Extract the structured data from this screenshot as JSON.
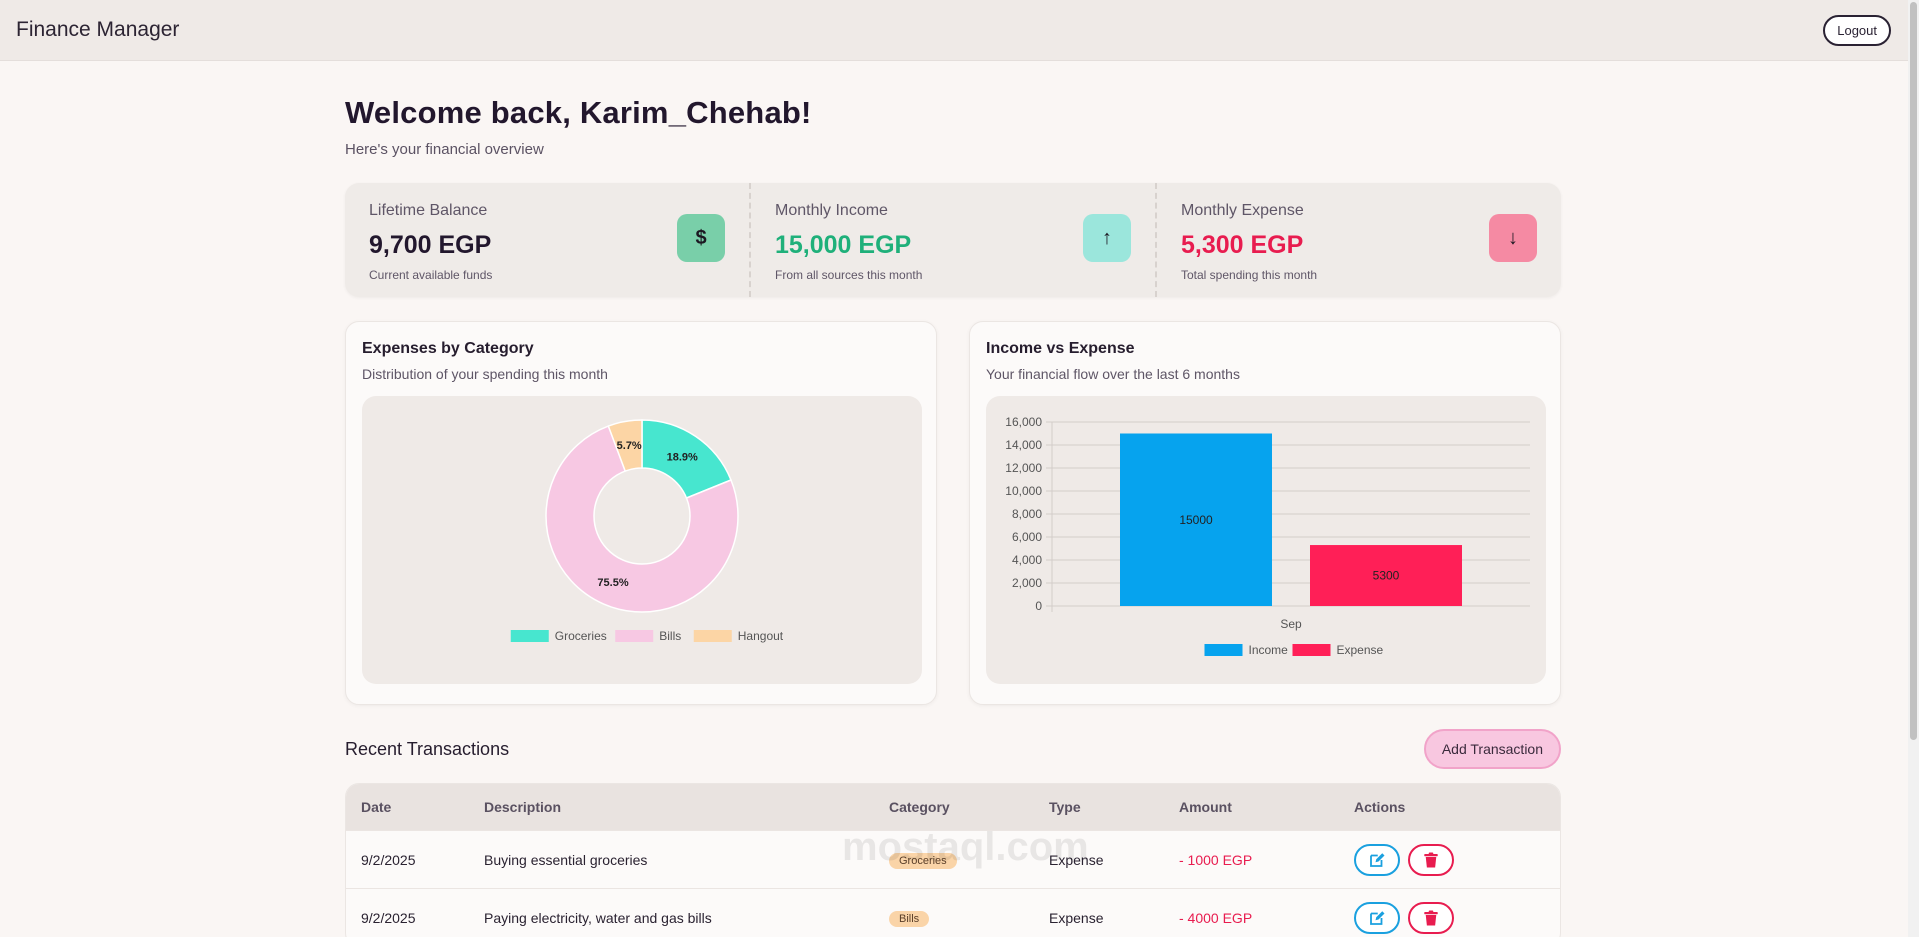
{
  "navbar": {
    "brand": "Finance Manager",
    "logout_label": "Logout"
  },
  "welcome": {
    "title": "Welcome back, Karim_Chehab!",
    "subtitle": "Here's your financial overview"
  },
  "stats": [
    {
      "label": "Lifetime Balance",
      "value": "9,700 EGP",
      "note": "Current available funds",
      "icon": "dollar-icon",
      "icon_glyph": "$",
      "value_color": "#22172d",
      "icon_bg": "#79cfa9"
    },
    {
      "label": "Monthly Income",
      "value": "15,000 EGP",
      "note": "From all sources this month",
      "icon": "arrow-up-icon",
      "icon_glyph": "↑",
      "value_color": "#1fb07a",
      "icon_bg": "#9be6dc"
    },
    {
      "label": "Monthly Expense",
      "value": "5,300 EGP",
      "note": "Total spending this month",
      "icon": "arrow-down-icon",
      "icon_glyph": "↓",
      "value_color": "#e81c4f",
      "icon_bg": "#f58aa3"
    }
  ],
  "expenses_card": {
    "title": "Expenses by Category",
    "subtitle": "Distribution of your spending this month"
  },
  "income_card": {
    "title": "Income vs Expense",
    "subtitle": "Your financial flow over the last 6 months"
  },
  "chart_data": [
    {
      "type": "pie",
      "categories": [
        "Groceries",
        "Bills",
        "Hangout"
      ],
      "values": [
        18.9,
        75.5,
        5.7
      ],
      "labels": [
        "18.9%",
        "75.5%",
        "5.7%"
      ],
      "colors": [
        "#47e6cf",
        "#f7c8e3",
        "#fcd5a5"
      ],
      "legend": "bottom"
    },
    {
      "type": "bar",
      "categories": [
        "Sep"
      ],
      "series": [
        {
          "name": "Income",
          "values": [
            15000
          ],
          "color": "#06a3ee"
        },
        {
          "name": "Expense",
          "values": [
            5300
          ],
          "color": "#ff1f57"
        }
      ],
      "ylim": [
        0,
        16000
      ],
      "yticks": [
        "0",
        "2,000",
        "4,000",
        "6,000",
        "8,000",
        "10,000",
        "12,000",
        "14,000",
        "16,000"
      ],
      "grid": true,
      "legend": "bottom"
    }
  ],
  "transactions": {
    "title": "Recent Transactions",
    "add_label": "Add Transaction",
    "columns": [
      "Date",
      "Description",
      "Category",
      "Type",
      "Amount",
      "Actions"
    ],
    "rows": [
      {
        "date": "9/2/2025",
        "description": "Buying essential groceries",
        "category": "Groceries",
        "type": "Expense",
        "amount": "- 1000 EGP"
      },
      {
        "date": "9/2/2025",
        "description": "Paying electricity, water and gas bills",
        "category": "Bills",
        "type": "Expense",
        "amount": "- 4000 EGP"
      }
    ]
  },
  "watermark": "mostaql.com"
}
